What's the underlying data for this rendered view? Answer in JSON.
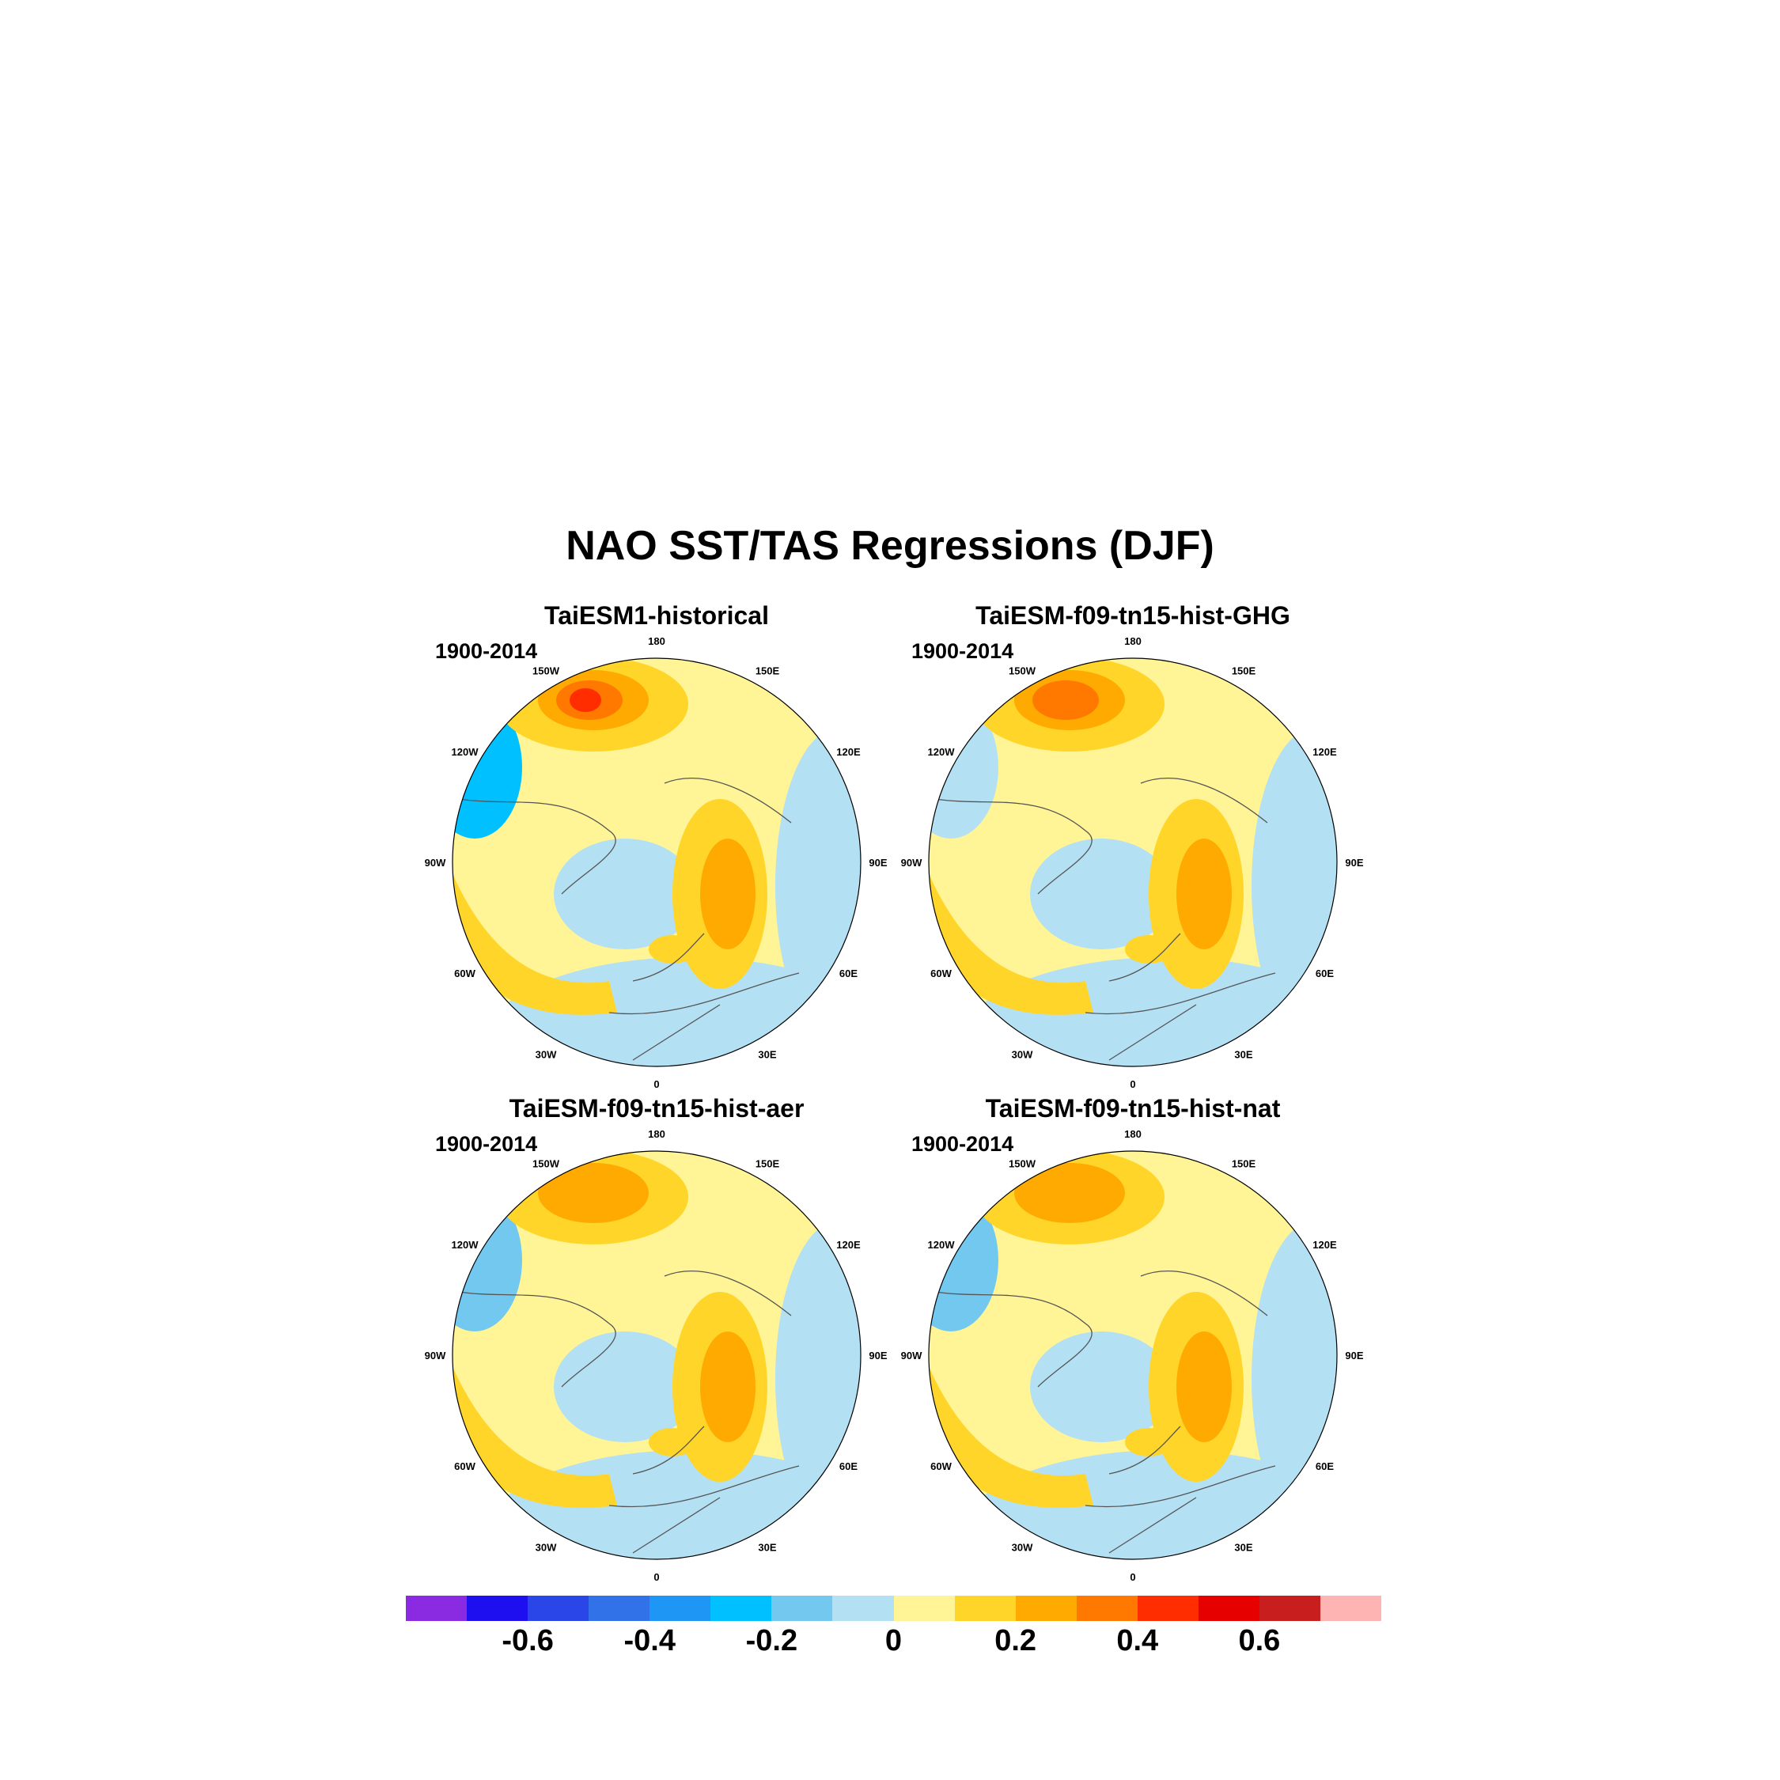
{
  "figure": {
    "title": "NAO SST/TAS Regressions (DJF)"
  },
  "panels": [
    {
      "title": "TaiESM1-historical",
      "period": "1900-2014",
      "pacific_max": 0.4,
      "siberia_max": 0.3,
      "west_min": -0.3
    },
    {
      "title": "TaiESM-f09-tn15-hist-GHG",
      "period": "1900-2014",
      "pacific_max": 0.3,
      "siberia_max": 0.3,
      "west_min": -0.1
    },
    {
      "title": "TaiESM-f09-tn15-hist-aer",
      "period": "1900-2014",
      "pacific_max": 0.2,
      "siberia_max": 0.3,
      "west_min": -0.2
    },
    {
      "title": "TaiESM-f09-tn15-hist-nat",
      "period": "1900-2014",
      "pacific_max": 0.2,
      "siberia_max": 0.3,
      "west_min": -0.2
    }
  ],
  "longitude_labels": [
    "180",
    "150E",
    "120E",
    "90E",
    "60E",
    "30E",
    "0",
    "30W",
    "60W",
    "90W",
    "120W",
    "150W"
  ],
  "colorbar": {
    "colors": [
      "#8a2be2",
      "#1e0ff0",
      "#2a45e8",
      "#3272e8",
      "#1e96f5",
      "#00c0ff",
      "#73c8f0",
      "#b4e0f4",
      "#fff596",
      "#ffd52a",
      "#ffaa00",
      "#ff7800",
      "#ff2d00",
      "#e60000",
      "#c81e1e",
      "#ffb4b4"
    ],
    "tick_labels": [
      "-0.6",
      "-0.4",
      "-0.2",
      "0",
      "0.2",
      "0.4",
      "0.6"
    ],
    "tick_values": [
      -0.6,
      -0.4,
      -0.2,
      0,
      0.2,
      0.4,
      0.6
    ],
    "boundaries": [
      -0.7,
      -0.6,
      -0.5,
      -0.4,
      -0.3,
      -0.2,
      -0.1,
      0,
      0.1,
      0.2,
      0.3,
      0.4,
      0.5,
      0.6,
      0.7
    ]
  }
}
